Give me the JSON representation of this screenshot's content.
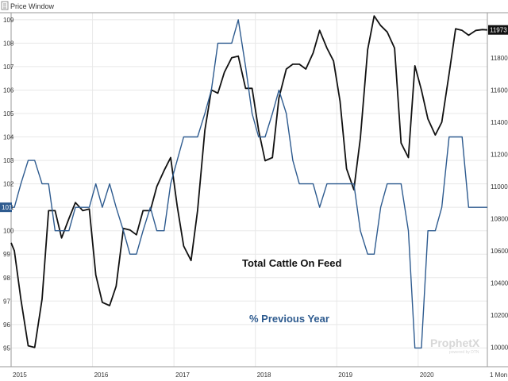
{
  "window": {
    "title": "Price Window",
    "watermark": "ProphetX",
    "watermark_sub": "powered by DTN"
  },
  "annotations": {
    "total": "Total Cattle On Feed",
    "previous": "% Previous Year"
  },
  "colors": {
    "total_series": "#111111",
    "previous_series": "#2e5b8f",
    "grid": "#e8e8e8",
    "frame": "#9a9a9a",
    "last_tag_right": "#111111",
    "last_tag_left": "#2e5b8f"
  },
  "chart_data": {
    "type": "line",
    "title": "",
    "x_ticks": [
      "2015",
      "2016",
      "2017",
      "2018",
      "2019",
      "2020"
    ],
    "x_corner_label": "1 Mon",
    "x_range": [
      2015.0,
      2020.85
    ],
    "left_axis": {
      "ticks": [
        "95",
        "96",
        "97",
        "98",
        "99",
        "100",
        "101",
        "102",
        "103",
        "104",
        "105",
        "106",
        "107",
        "108",
        "109"
      ],
      "range": [
        94.2,
        109.3
      ],
      "last_value_tag": "101"
    },
    "right_axis": {
      "ticks": [
        "10000",
        "10200",
        "10400",
        "10600",
        "10800",
        "11000",
        "11200",
        "11400",
        "11600",
        "11800"
      ],
      "range": [
        9880,
        12080
      ],
      "last_value_tag": "11973"
    },
    "grid": true,
    "series": [
      {
        "name": "Total Cattle On Feed",
        "axis": "right",
        "x": [
          2015.0,
          2015.04,
          2015.12,
          2015.21,
          2015.29,
          2015.38,
          2015.46,
          2015.54,
          2015.62,
          2015.71,
          2015.79,
          2015.88,
          2015.96,
          2016.04,
          2016.12,
          2016.21,
          2016.29,
          2016.38,
          2016.46,
          2016.54,
          2016.62,
          2016.71,
          2016.79,
          2016.88,
          2016.96,
          2017.04,
          2017.12,
          2017.21,
          2017.29,
          2017.38,
          2017.46,
          2017.54,
          2017.62,
          2017.71,
          2017.79,
          2017.88,
          2017.96,
          2018.04,
          2018.12,
          2018.21,
          2018.29,
          2018.38,
          2018.46,
          2018.54,
          2018.62,
          2018.71,
          2018.79,
          2018.88,
          2018.96,
          2019.04,
          2019.12,
          2019.21,
          2019.29,
          2019.38,
          2019.46,
          2019.54,
          2019.62,
          2019.71,
          2019.79,
          2019.88,
          2019.96,
          2020.04,
          2020.12,
          2020.21,
          2020.29,
          2020.38,
          2020.46,
          2020.54,
          2020.62,
          2020.71,
          2020.79,
          2020.85
        ],
        "y": [
          10650,
          10600,
          10300,
          10010,
          10000,
          10300,
          10850,
          10850,
          10680,
          10800,
          10900,
          10850,
          10860,
          10450,
          10280,
          10260,
          10380,
          10740,
          10730,
          10700,
          10850,
          10850,
          11000,
          11100,
          11180,
          10880,
          10630,
          10540,
          10850,
          11350,
          11600,
          11580,
          11710,
          11800,
          11810,
          11610,
          11610,
          11350,
          11160,
          11180,
          11550,
          11730,
          11760,
          11760,
          11730,
          11830,
          11970,
          11860,
          11780,
          11530,
          11110,
          10980,
          11300,
          11850,
          12060,
          12000,
          11960,
          11860,
          11270,
          11180,
          11750,
          11600,
          11420,
          11320,
          11400,
          11700,
          11980,
          11970,
          11940,
          11970,
          11975,
          11973
        ]
      },
      {
        "name": "% Previous Year",
        "axis": "left",
        "x": [
          2015.0,
          2015.04,
          2015.12,
          2015.21,
          2015.29,
          2015.38,
          2015.46,
          2015.54,
          2015.62,
          2015.71,
          2015.79,
          2015.88,
          2015.96,
          2016.04,
          2016.12,
          2016.21,
          2016.29,
          2016.38,
          2016.46,
          2016.54,
          2016.62,
          2016.71,
          2016.79,
          2016.88,
          2016.96,
          2017.04,
          2017.12,
          2017.21,
          2017.29,
          2017.38,
          2017.46,
          2017.54,
          2017.62,
          2017.71,
          2017.79,
          2017.88,
          2017.96,
          2018.04,
          2018.12,
          2018.21,
          2018.29,
          2018.38,
          2018.46,
          2018.54,
          2018.62,
          2018.71,
          2018.79,
          2018.88,
          2018.96,
          2019.04,
          2019.12,
          2019.21,
          2019.29,
          2019.38,
          2019.46,
          2019.54,
          2019.62,
          2019.71,
          2019.79,
          2019.88,
          2019.96,
          2020.04,
          2020.12,
          2020.21,
          2020.29,
          2020.38,
          2020.46,
          2020.54,
          2020.62,
          2020.71,
          2020.79,
          2020.85
        ],
        "y": [
          101,
          101,
          102,
          103,
          103,
          102,
          102,
          100,
          100,
          100,
          101,
          101,
          101,
          102,
          101,
          102,
          101,
          100,
          99,
          99,
          100,
          101,
          100,
          100,
          102,
          103,
          104,
          104,
          104,
          105,
          106,
          108,
          108,
          108,
          109,
          107,
          105,
          104,
          104,
          105,
          106,
          105,
          103,
          102,
          102,
          102,
          101,
          102,
          102,
          102,
          102,
          102,
          100,
          99,
          99,
          101,
          102,
          102,
          102,
          100,
          95,
          95,
          100,
          100,
          101,
          104,
          104,
          104,
          101,
          101,
          101,
          101
        ]
      }
    ]
  }
}
